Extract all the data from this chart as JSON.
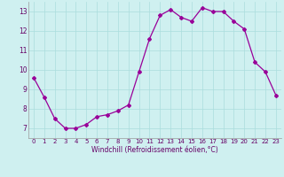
{
  "x": [
    0,
    1,
    2,
    3,
    4,
    5,
    6,
    7,
    8,
    9,
    10,
    11,
    12,
    13,
    14,
    15,
    16,
    17,
    18,
    19,
    20,
    21,
    22,
    23
  ],
  "y": [
    9.6,
    8.6,
    7.5,
    7.0,
    7.0,
    7.2,
    7.6,
    7.7,
    7.9,
    8.2,
    9.9,
    11.6,
    12.8,
    13.1,
    12.7,
    12.5,
    13.2,
    13.0,
    13.0,
    12.5,
    12.1,
    10.4,
    9.9,
    8.7
  ],
  "line_color": "#990099",
  "marker": "D",
  "markersize": 2.0,
  "linewidth": 0.9,
  "bg_color": "#cff0f0",
  "grid_color": "#aadddd",
  "xlabel": "Windchill (Refroidissement éolien,°C)",
  "xlabel_fontsize": 5.5,
  "xlabel_color": "#660066",
  "tick_color": "#660066",
  "tick_fontsize": 5.0,
  "ytick_fontsize": 5.5,
  "ylim": [
    6.5,
    13.5
  ],
  "yticks": [
    7,
    8,
    9,
    10,
    11,
    12,
    13
  ],
  "xlim": [
    -0.5,
    23.5
  ],
  "xticks": [
    0,
    1,
    2,
    3,
    4,
    5,
    6,
    7,
    8,
    9,
    10,
    11,
    12,
    13,
    14,
    15,
    16,
    17,
    18,
    19,
    20,
    21,
    22,
    23
  ]
}
